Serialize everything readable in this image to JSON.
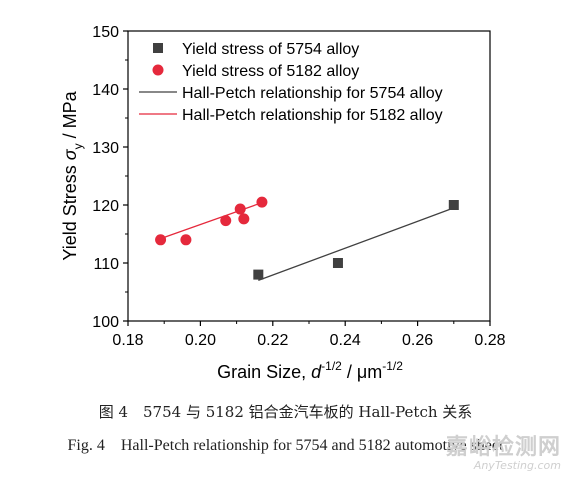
{
  "chart_data": {
    "type": "scatter",
    "xlabel_main": "Grain Size, ",
    "xlabel_var": "d",
    "xlabel_exp": "-1/2",
    "xlabel_unit": " / μm",
    "xlabel_unit_exp": "-1/2",
    "ylabel_main": "Yield Stress ",
    "ylabel_var": "σ",
    "ylabel_sub": "y",
    "ylabel_unit": " / MPa",
    "xlim": [
      0.18,
      0.28
    ],
    "ylim": [
      100,
      150
    ],
    "x_ticks": [
      "0.18",
      "0.20",
      "0.22",
      "0.24",
      "0.26",
      "0.28"
    ],
    "y_ticks": [
      "100",
      "110",
      "120",
      "130",
      "140",
      "150"
    ],
    "legend_position": "top-right",
    "series": [
      {
        "name": "Yield stress of 5754 alloy",
        "marker": "square",
        "color": "#404040",
        "points": [
          [
            0.216,
            108.0
          ],
          [
            0.238,
            110.0
          ],
          [
            0.27,
            120.0
          ]
        ]
      },
      {
        "name": "Yield stress of 5182 alloy",
        "marker": "circle",
        "color": "#e5293c",
        "points": [
          [
            0.189,
            114.0
          ],
          [
            0.196,
            114.0
          ],
          [
            0.207,
            117.3
          ],
          [
            0.211,
            119.3
          ],
          [
            0.212,
            117.6
          ],
          [
            0.217,
            120.5
          ]
        ]
      }
    ],
    "fits": [
      {
        "name": "Hall-Petch relationship for 5754 alloy",
        "color": "#404040",
        "x": [
          0.216,
          0.27
        ],
        "y": [
          107.0,
          119.5
        ]
      },
      {
        "name": "Hall-Petch relationship for 5182 alloy",
        "color": "#e5293c",
        "x": [
          0.189,
          0.217
        ],
        "y": [
          114.2,
          120.4
        ]
      }
    ]
  },
  "caption_cn": "图 4　5754 与 5182 铝合金汽车板的 Hall-Petch 关系",
  "caption_en": "Fig. 4　Hall-Petch relationship for 5754 and 5182 automotive sheet",
  "watermark": {
    "cn": "嘉峪检测网",
    "en": "AnyTesting.com"
  }
}
